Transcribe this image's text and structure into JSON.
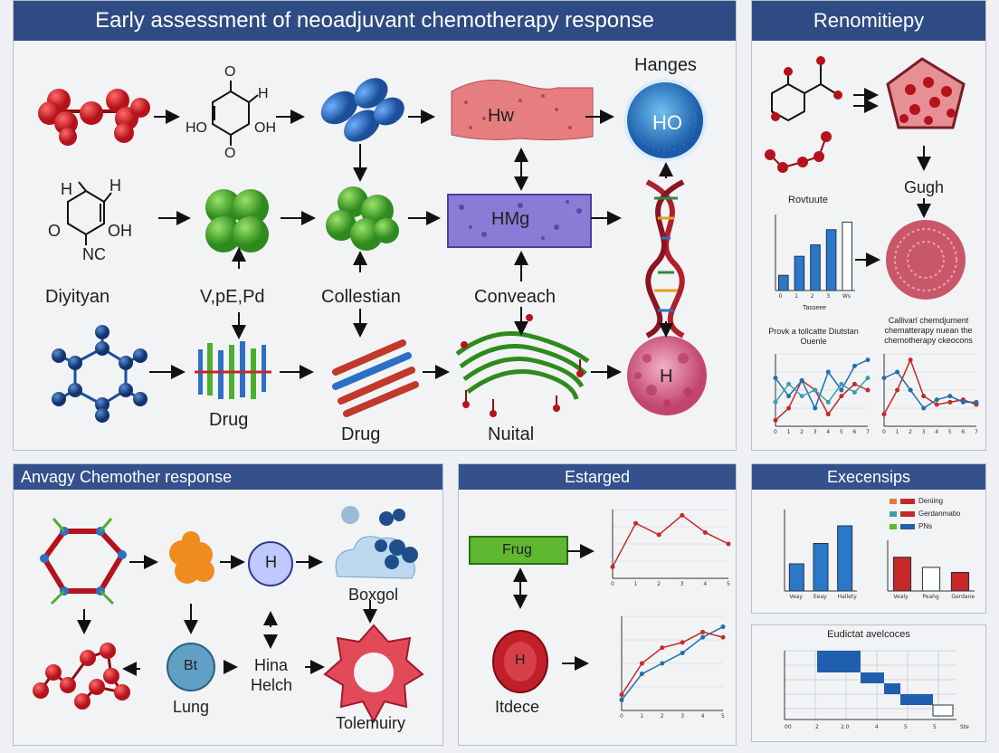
{
  "panels": {
    "main": {
      "title": "Early assessment of neoadjuvant chemotherapy response",
      "labels": {
        "hanges": "Hanges",
        "hw": "Hw",
        "ho": "HO",
        "hmg": "HMg",
        "h_cell": "H",
        "diyityan": "Diyityan",
        "vpepd": "V,pE,Pd",
        "collestian": "Collestian",
        "conveach": "Conveach",
        "drug1": "Drug",
        "drug2": "Drug",
        "nuital": "Nuital",
        "hq_ho": "HO",
        "hq_oh": "OH",
        "hq_h": "H",
        "hq_o1": "O",
        "hq_o2": "O",
        "ring_h1": "H",
        "ring_h2": "H",
        "ring_o": "O",
        "ring_oh": "OH",
        "ring_nc": "NC"
      }
    },
    "right_top": {
      "title": "Renomitiepy",
      "gugh": "Gugh",
      "bar_title": "Rovtuute",
      "bar_xlabel": "Tasseee",
      "line1_title": "Provk a tollcatte Diutstan Ouenle",
      "line2_title": "Callivarl chemdjument chematterapy nuean the chemotherapy ckeocons"
    },
    "bottom_left": {
      "title": "Anvagy Chemother response",
      "labels": {
        "h": "H",
        "boxgol": "Boxgol",
        "bt": "Bt",
        "lung": "Lung",
        "hina": "Hina",
        "helch": "Helch",
        "tolemuiry": "Tolemuiry"
      }
    },
    "bottom_mid": {
      "title": "Estarged",
      "frug": "Frug",
      "h": "H",
      "itdece": "Itdece"
    },
    "bottom_right": {
      "title": "Execensips",
      "legend": [
        "Deniing",
        "Gerdanmatio",
        "PNs"
      ],
      "bar1_categories": [
        "Veay",
        "Eeay",
        "Hallety"
      ],
      "bar2_categories": [
        "Vealy",
        "Peahg",
        "Gerdane"
      ],
      "gantt_title": "Eudictat avelcoces"
    }
  },
  "colors": {
    "header": "#2f4b84",
    "red_atom": "#d11f2a",
    "blue_atom": "#2c6fc4",
    "green_atom": "#4caf2e",
    "accent_blue": "#1f5fae",
    "accent_red": "#c62828"
  },
  "chart_data": [
    {
      "type": "bar",
      "title": "Rovtuute",
      "xlabel": "Tasseee",
      "categories": [
        "0",
        "1",
        "2",
        "3",
        "Ws"
      ],
      "values": [
        4,
        9,
        12,
        16,
        18
      ],
      "ylim": [
        0,
        20
      ]
    },
    {
      "type": "line",
      "title": "Provk a tollcatte Diutstan Ouenle",
      "x": [
        0,
        1,
        2,
        3,
        4,
        5,
        6,
        7
      ],
      "series": [
        {
          "name": "",
          "color": "#c62828",
          "values": [
            5,
            15,
            38,
            30,
            10,
            25,
            35,
            30
          ]
        },
        {
          "name": "",
          "color": "#1f6fb0",
          "values": [
            40,
            25,
            38,
            15,
            45,
            30,
            50,
            55
          ]
        },
        {
          "name": "",
          "color": "#3aa0b0",
          "values": [
            20,
            35,
            25,
            30,
            20,
            35,
            28,
            40
          ]
        }
      ],
      "ylim": [
        0,
        60
      ]
    },
    {
      "type": "line",
      "title": "Callivarl chemdjument chematterapy nuean the chemotherapy ckeocons",
      "x": [
        0,
        1,
        2,
        3,
        4,
        5,
        6,
        7
      ],
      "series": [
        {
          "name": "",
          "color": "#c62828",
          "values": [
            10,
            30,
            55,
            25,
            18,
            20,
            22,
            18
          ]
        },
        {
          "name": "",
          "color": "#1f6fb0",
          "values": [
            40,
            45,
            30,
            15,
            22,
            25,
            20,
            20
          ]
        }
      ],
      "ylim": [
        0,
        60
      ]
    },
    {
      "type": "scatter",
      "x": [
        0,
        1,
        2,
        3,
        4,
        5
      ],
      "series": [
        {
          "name": "",
          "color": "#c62828",
          "values": [
            10,
            48,
            38,
            55,
            40,
            30
          ]
        }
      ],
      "ylim": [
        0,
        60
      ]
    },
    {
      "type": "line",
      "x": [
        0,
        1,
        2,
        3,
        4,
        5
      ],
      "series": [
        {
          "name": "",
          "color": "#1f6fb0",
          "values": [
            20,
            70,
            90,
            110,
            140,
            160
          ]
        },
        {
          "name": "",
          "color": "#c62828",
          "values": [
            30,
            90,
            120,
            130,
            150,
            140
          ]
        }
      ],
      "ylim": [
        0,
        180
      ]
    },
    {
      "type": "bar",
      "categories": [
        "Veay",
        "Eeay",
        "Hallety"
      ],
      "values": [
        20,
        35,
        48
      ],
      "ylim": [
        0,
        60
      ]
    },
    {
      "type": "bar",
      "categories": [
        "Vealy",
        "Peahg",
        "Gerdane"
      ],
      "values": [
        40,
        28,
        22
      ],
      "ylim": [
        0,
        60
      ]
    }
  ]
}
